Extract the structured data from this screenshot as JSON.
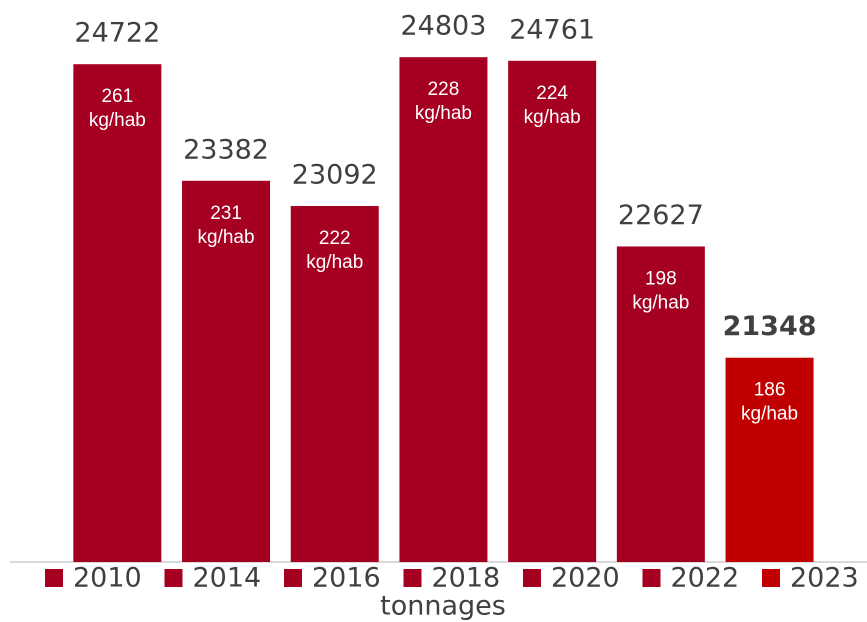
{
  "chart_data": {
    "type": "bar",
    "x_label": "tonnages",
    "categories": [
      "2010",
      "2014",
      "2016",
      "2018",
      "2020",
      "2022",
      "2023"
    ],
    "values": [
      24722,
      23382,
      23092,
      24803,
      24761,
      22627,
      21348
    ],
    "colors": [
      "#a50021",
      "#a50021",
      "#a50021",
      "#a50021",
      "#a50021",
      "#a50021",
      "#c00000"
    ],
    "value_label_bold": [
      false,
      false,
      false,
      false,
      false,
      false,
      true
    ],
    "per_capita": [
      261,
      231,
      222,
      228,
      224,
      198,
      186
    ],
    "per_capita_unit": "kg/hab",
    "ylim": [
      19000,
      25460
    ],
    "legend": "bottom"
  }
}
